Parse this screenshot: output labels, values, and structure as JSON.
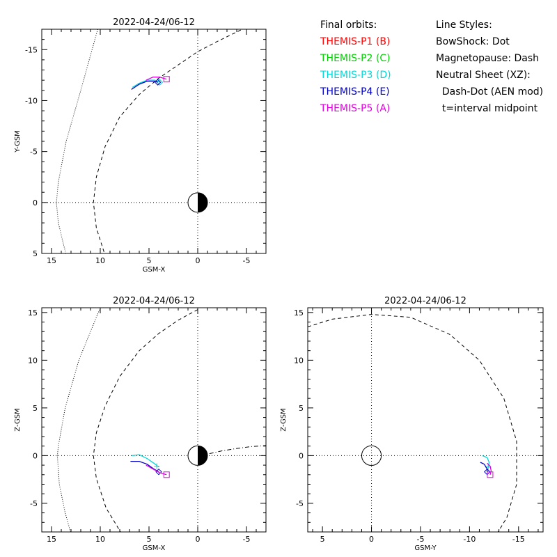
{
  "legend": {
    "orbits_title": "Final orbits:",
    "probes": [
      {
        "label": "THEMIS-P1 (B)",
        "color": "#ff0000"
      },
      {
        "label": "THEMIS-P2 (C)",
        "color": "#00d000"
      },
      {
        "label": "THEMIS-P3 (D)",
        "color": "#00d8d8"
      },
      {
        "label": "THEMIS-P4 (E)",
        "color": "#0000c0"
      },
      {
        "label": "THEMIS-P5 (A)",
        "color": "#e000e0"
      }
    ],
    "styles_title": "Line Styles:",
    "styles": [
      "BowShock: Dot",
      "Magnetopause: Dash",
      "Neutral Sheet (XZ):",
      "  Dash-Dot (AEN mod)",
      "  t=interval midpoint"
    ]
  },
  "chart_data": [
    {
      "type": "line",
      "title": "2022-04-24/06-12",
      "xlabel": "GSM-X",
      "ylabel": "Y-GSM",
      "xlim": [
        16,
        -7
      ],
      "ylim": [
        5,
        -17
      ],
      "xticks": [
        15,
        10,
        5,
        0,
        -5
      ],
      "yticks": [
        5,
        0,
        -5,
        -10,
        -15
      ],
      "earth": true,
      "bowshock": [
        [
          10.2,
          -17.2
        ],
        [
          12.0,
          -11.0
        ],
        [
          13.5,
          -6.0
        ],
        [
          14.3,
          -2.0
        ],
        [
          14.5,
          0
        ],
        [
          14.3,
          2.0
        ],
        [
          13.8,
          4.0
        ],
        [
          13.4,
          5.5
        ]
      ],
      "magnetopause": [
        [
          -5.0,
          -17.2
        ],
        [
          -2.0,
          -15.8
        ],
        [
          0,
          -14.8
        ],
        [
          2.0,
          -13.5
        ],
        [
          4.0,
          -12.2
        ],
        [
          6.0,
          -10.6
        ],
        [
          8.0,
          -8.4
        ],
        [
          9.5,
          -5.5
        ],
        [
          10.4,
          -2.5
        ],
        [
          10.7,
          0
        ],
        [
          10.4,
          2.5
        ],
        [
          9.4,
          5.5
        ]
      ],
      "orbits": [
        {
          "name": "THEMIS-P3 (D)",
          "color": "#00d8d8",
          "points": [
            [
              6.7,
              -11.3
            ],
            [
              6.0,
              -11.7
            ],
            [
              5.2,
              -12.0
            ],
            [
              4.4,
              -12.0
            ],
            [
              3.9,
              -11.8
            ]
          ],
          "marker": "diamond",
          "marker_at": [
            3.9,
            -11.8
          ]
        },
        {
          "name": "THEMIS-P4 (E)",
          "color": "#0000c0",
          "points": [
            [
              6.8,
              -11.1
            ],
            [
              6.0,
              -11.6
            ],
            [
              5.2,
              -11.9
            ],
            [
              4.5,
              -11.9
            ],
            [
              4.1,
              -11.8
            ]
          ],
          "marker": "diamond",
          "marker_at": [
            4.1,
            -11.8
          ]
        },
        {
          "name": "THEMIS-P5 (A)",
          "color": "#e000e0",
          "points": [
            [
              5.3,
              -12.0
            ],
            [
              4.6,
              -12.3
            ],
            [
              3.9,
              -12.3
            ],
            [
              3.2,
              -12.1
            ]
          ],
          "marker": "square",
          "marker_at": [
            3.2,
            -12.1
          ]
        }
      ]
    },
    {
      "type": "line",
      "title": "2022-04-24/06-12",
      "xlabel": "GSM-X",
      "ylabel": "Z-GSM",
      "xlim": [
        16,
        -7
      ],
      "ylim": [
        -8,
        15.5
      ],
      "xticks": [
        15,
        10,
        5,
        0,
        -5
      ],
      "yticks": [
        -5,
        0,
        5,
        10,
        15
      ],
      "earth": true,
      "bowshock": [
        [
          10.0,
          15.5
        ],
        [
          12.2,
          10.0
        ],
        [
          13.6,
          5.0
        ],
        [
          14.3,
          1.0
        ],
        [
          14.4,
          0
        ],
        [
          14.2,
          -3.0
        ],
        [
          13.6,
          -6.0
        ],
        [
          13.0,
          -8.2
        ]
      ],
      "magnetopause": [
        [
          0,
          15.3
        ],
        [
          2.0,
          14.2
        ],
        [
          4.0,
          12.8
        ],
        [
          6.0,
          11.0
        ],
        [
          8.0,
          8.3
        ],
        [
          9.5,
          5.2
        ],
        [
          10.4,
          2.4
        ],
        [
          10.7,
          0
        ],
        [
          10.4,
          -2.4
        ],
        [
          9.4,
          -5.5
        ],
        [
          7.8,
          -8.2
        ]
      ],
      "neutral_sheet": [
        [
          -1.2,
          0.2
        ],
        [
          -2.5,
          0.5
        ],
        [
          -4.0,
          0.75
        ],
        [
          -5.5,
          0.95
        ],
        [
          -7.0,
          1.05
        ]
      ],
      "orbits": [
        {
          "name": "THEMIS-P3 (D)",
          "color": "#00d8d8",
          "points": [
            [
              6.8,
              0.0
            ],
            [
              6.0,
              0.1
            ],
            [
              5.2,
              -0.3
            ],
            [
              4.5,
              -0.8
            ],
            [
              4.0,
              -1.2
            ]
          ],
          "marker": "plus",
          "marker_at": [
            4.2,
            -1.1
          ]
        },
        {
          "name": "THEMIS-P4 (E)",
          "color": "#0000c0",
          "points": [
            [
              6.9,
              -0.6
            ],
            [
              6.0,
              -0.6
            ],
            [
              5.2,
              -0.9
            ],
            [
              4.5,
              -1.4
            ],
            [
              4.0,
              -1.7
            ]
          ],
          "marker": "diamond",
          "marker_at": [
            4.0,
            -1.7
          ]
        },
        {
          "name": "THEMIS-P5 (A)",
          "color": "#e000e0",
          "points": [
            [
              5.3,
              -1.0
            ],
            [
              4.6,
              -1.4
            ],
            [
              3.9,
              -1.8
            ],
            [
              3.2,
              -2.0
            ]
          ],
          "marker": "square",
          "marker_at": [
            3.2,
            -2.0
          ]
        }
      ]
    },
    {
      "type": "line",
      "title": "2022-04-24/06-12",
      "xlabel": "GSM-Y",
      "ylabel": "Z-GSM",
      "xlim": [
        6.5,
        -17.5
      ],
      "ylim": [
        -8,
        15.5
      ],
      "xticks": [
        5,
        0,
        -5,
        -10,
        -15
      ],
      "yticks": [
        -5,
        0,
        5,
        10,
        15
      ],
      "earth": false,
      "magnetopause": [
        [
          6.5,
          13.5
        ],
        [
          4.0,
          14.3
        ],
        [
          0,
          14.8
        ],
        [
          -4.0,
          14.5
        ],
        [
          -8.0,
          12.7
        ],
        [
          -11.0,
          10.0
        ],
        [
          -13.5,
          6.0
        ],
        [
          -14.8,
          1.5
        ],
        [
          -14.8,
          -3.0
        ],
        [
          -13.8,
          -6.5
        ],
        [
          -12.8,
          -8.2
        ]
      ],
      "orbits": [
        {
          "name": "THEMIS-P3 (D)",
          "color": "#00d8d8",
          "points": [
            [
              -11.3,
              0.0
            ],
            [
              -11.8,
              -0.2
            ],
            [
              -12.0,
              -0.7
            ],
            [
              -11.9,
              -1.2
            ]
          ],
          "marker": "plus",
          "marker_at": [
            -11.9,
            -1.2
          ]
        },
        {
          "name": "THEMIS-P4 (E)",
          "color": "#0000c0",
          "points": [
            [
              -11.1,
              -0.7
            ],
            [
              -11.5,
              -0.9
            ],
            [
              -11.8,
              -1.4
            ],
            [
              -11.8,
              -1.7
            ]
          ],
          "marker": "diamond",
          "marker_at": [
            -11.8,
            -1.7
          ]
        },
        {
          "name": "THEMIS-P5 (A)",
          "color": "#e000e0",
          "points": [
            [
              -11.8,
              -0.8
            ],
            [
              -12.1,
              -1.1
            ],
            [
              -12.2,
              -1.6
            ],
            [
              -12.1,
              -2.0
            ]
          ],
          "marker": "square",
          "marker_at": [
            -12.1,
            -2.0
          ]
        }
      ]
    }
  ]
}
